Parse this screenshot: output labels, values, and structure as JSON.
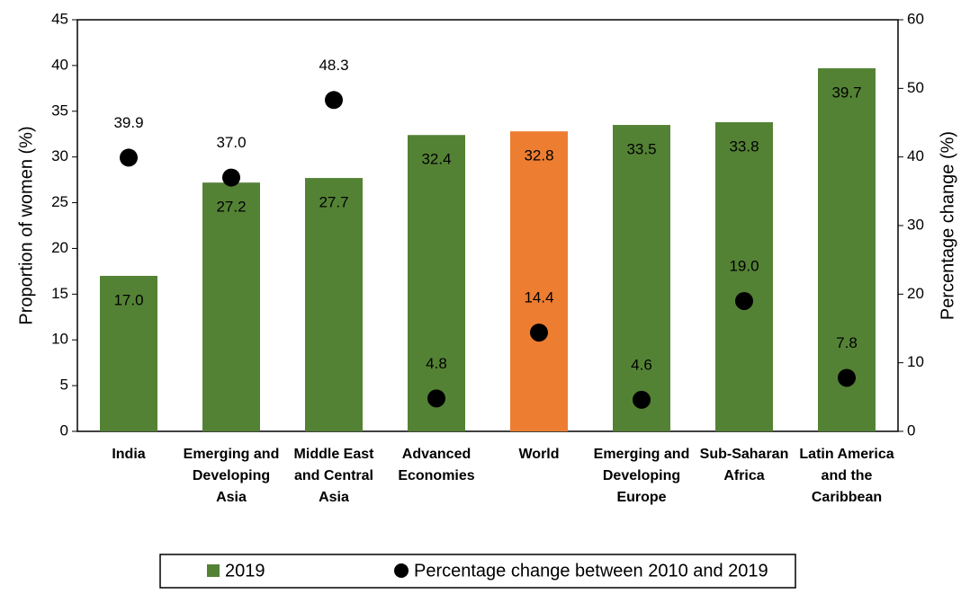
{
  "chart_data": {
    "type": "bar-dot",
    "y_label": "Proportion of women (%)",
    "y2_label": "Percentage change (%)",
    "categories": [
      "India",
      "Emerging and Developing Asia",
      "Middle East and Central Asia",
      "Advanced Economies",
      "World",
      "Emerging and Developing Europe",
      "Sub-Saharan Africa",
      "Latin America and the Caribbean"
    ],
    "series": [
      {
        "name": "2019",
        "type": "bar",
        "color": "#548235",
        "colors": [
          "#548235",
          "#548235",
          "#548235",
          "#548235",
          "#ed7d31",
          "#548235",
          "#548235",
          "#548235"
        ],
        "values": [
          17.0,
          27.2,
          27.7,
          32.4,
          32.8,
          33.5,
          33.8,
          39.7
        ],
        "value_labels": [
          "17.0",
          "27.2",
          "27.7",
          "32.4",
          "32.8",
          "33.5",
          "33.8",
          "39.7"
        ]
      },
      {
        "name": "Percentage change between 2010 and 2019",
        "type": "scatter",
        "axis": "y2",
        "color": "#000000",
        "values": [
          39.9,
          37.0,
          48.3,
          4.8,
          14.4,
          4.6,
          19.0,
          7.8
        ],
        "value_labels": [
          "39.9",
          "37.0",
          "48.3",
          "4.8",
          "14.4",
          "4.6",
          "19.0",
          "7.8"
        ]
      }
    ],
    "ylim": [
      0,
      45
    ],
    "yticks": [
      0,
      5,
      10,
      15,
      20,
      25,
      30,
      35,
      40,
      45
    ],
    "y2lim": [
      0,
      60
    ],
    "y2ticks": [
      0,
      10,
      20,
      30,
      40,
      50,
      60
    ]
  }
}
